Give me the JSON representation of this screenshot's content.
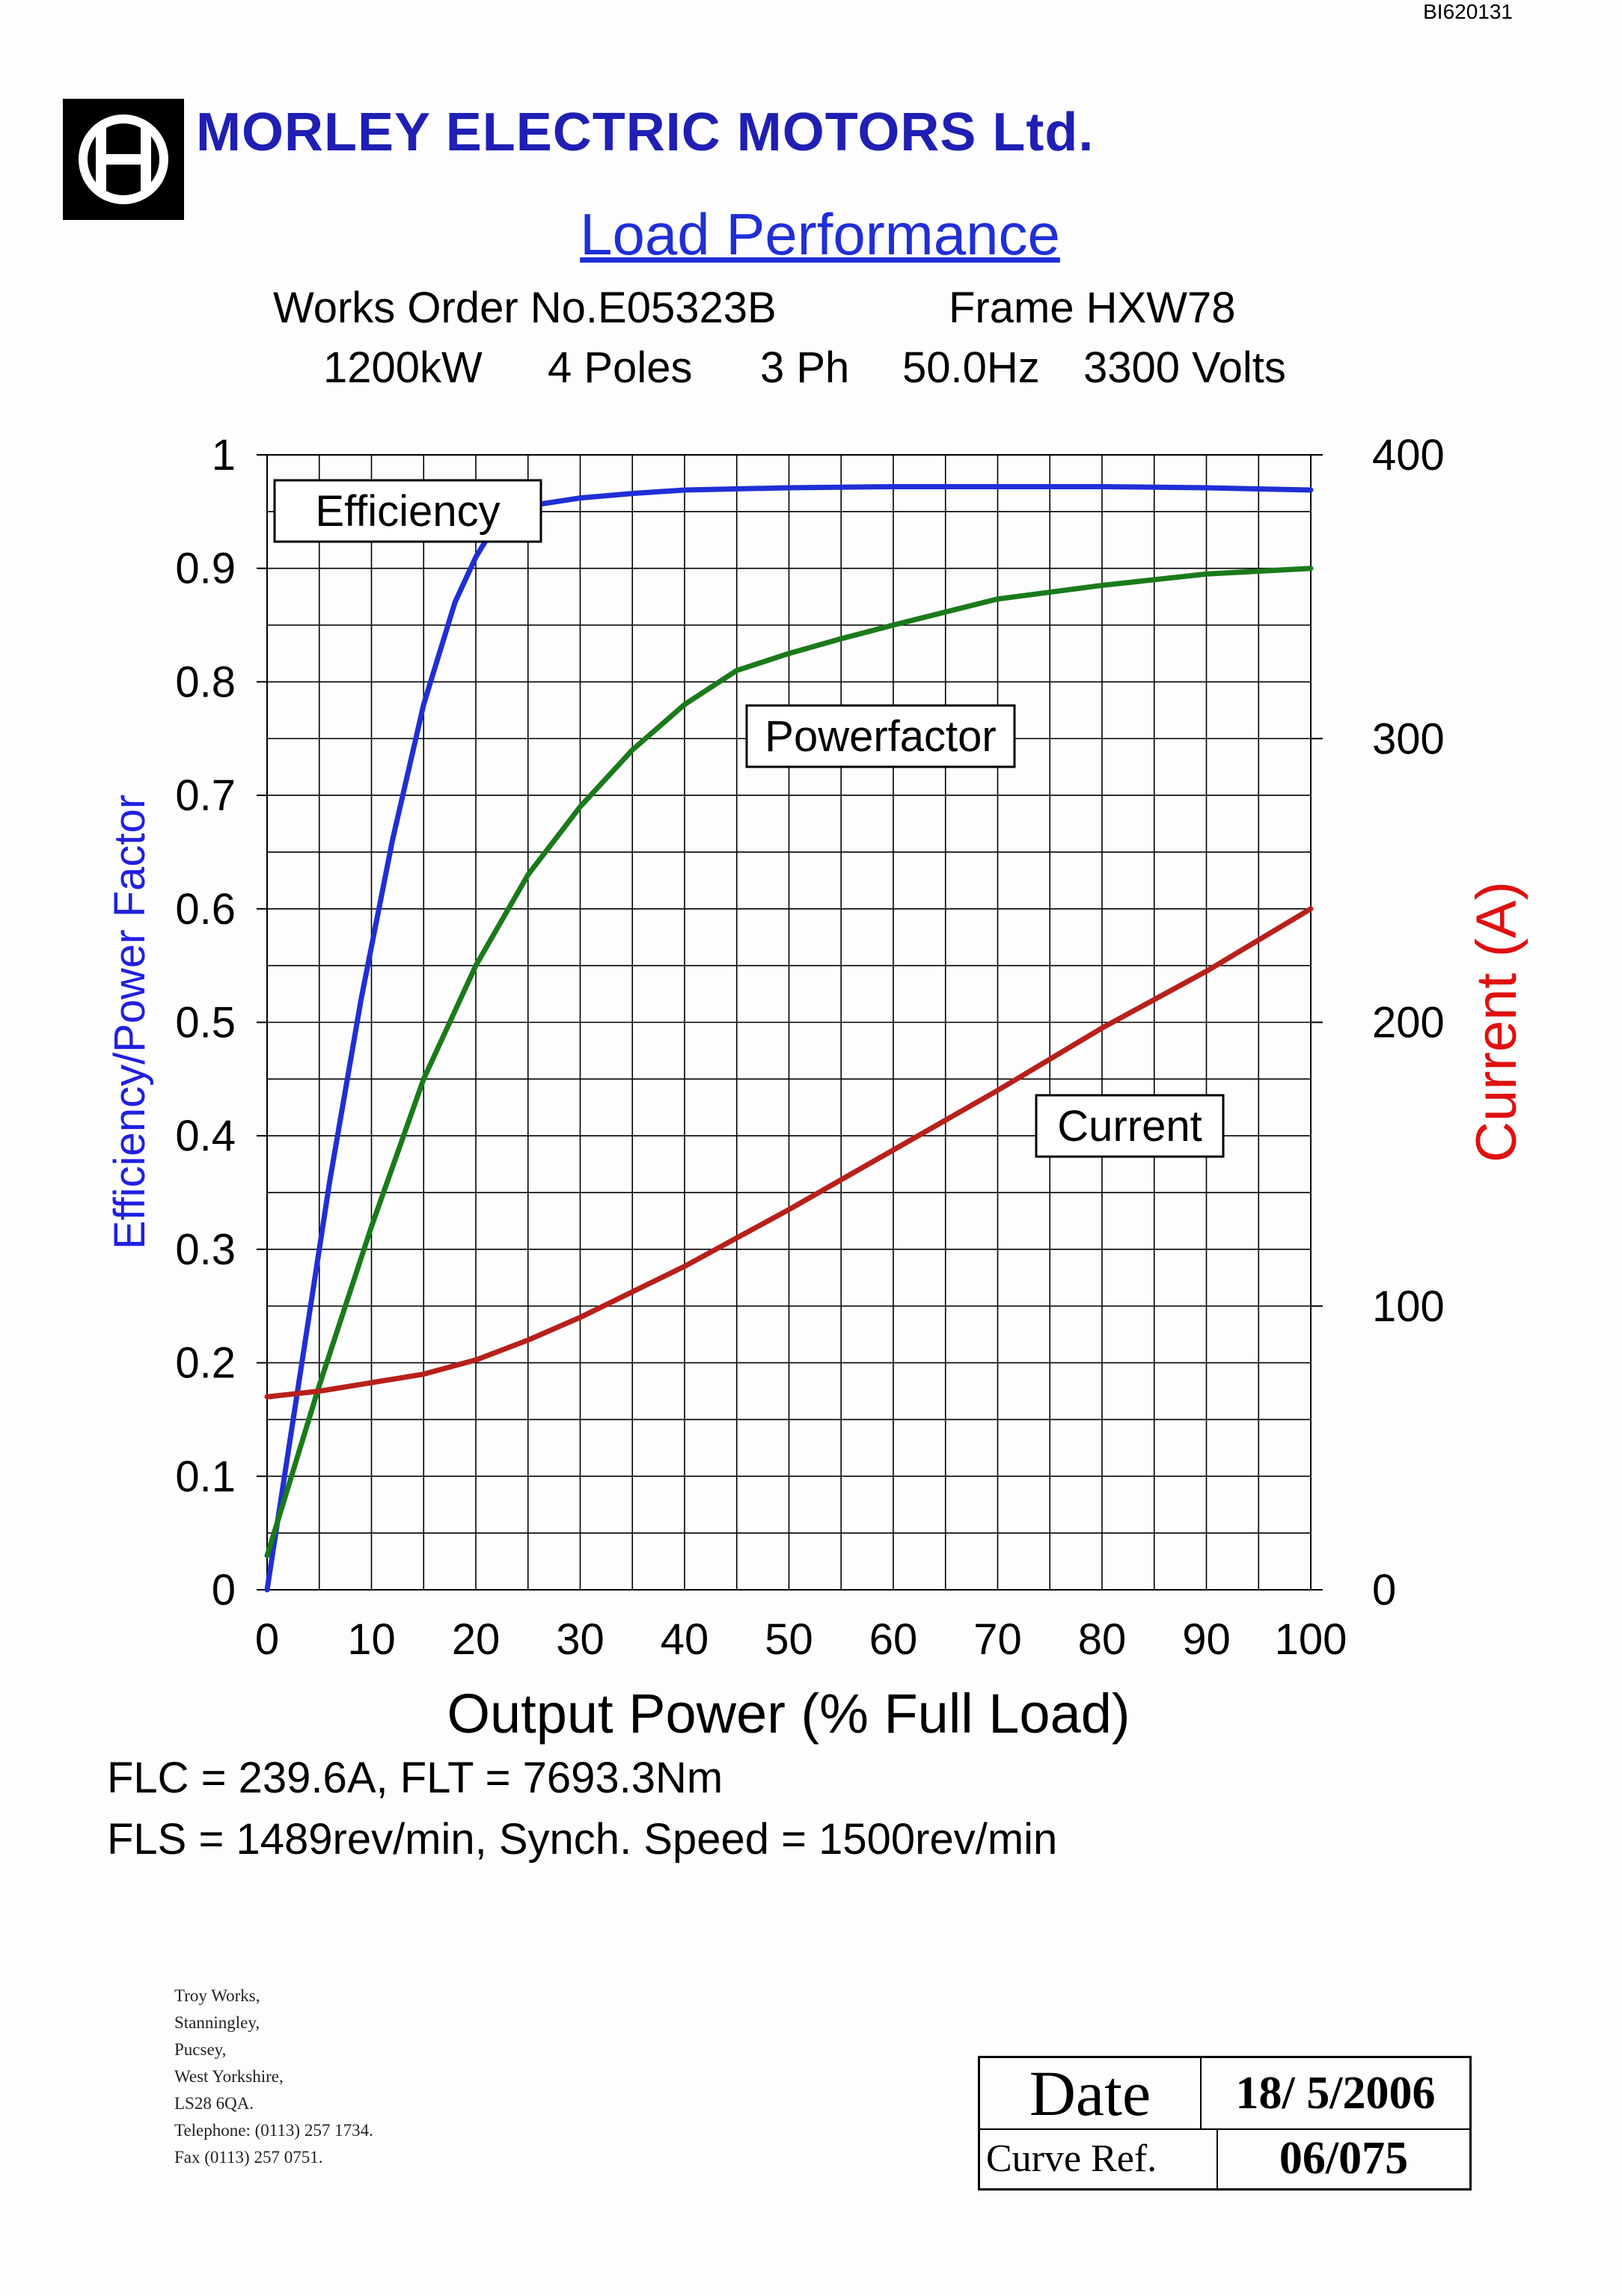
{
  "doc_ref": "BI620131",
  "header": {
    "company": "MORLEY ELECTRIC MOTORS Ltd.",
    "title": "Load Performance",
    "works_order": "Works Order No.E05323B",
    "frame": "Frame HXW78",
    "rating": {
      "power": "1200kW",
      "poles": "4 Poles",
      "phase": "3 Ph",
      "freq": "50.0Hz",
      "voltage": "3300 Volts"
    }
  },
  "colors": {
    "efficiency": "#1f2fd6",
    "powerfactor": "#1a7a1a",
    "current": "#b8201a",
    "left_axis_label": "#2020e0",
    "right_axis_label": "#e01010"
  },
  "chart_data": {
    "type": "line",
    "xlabel": "Output Power (% Full Load)",
    "ylabel_left": "Efficiency/Power Factor",
    "ylabel_right": "Current (A)",
    "xlim": [
      0,
      100
    ],
    "ylim_left": [
      0,
      1
    ],
    "ylim_right": [
      0,
      400
    ],
    "x_ticks": [
      0,
      10,
      20,
      30,
      40,
      50,
      60,
      70,
      80,
      90,
      100
    ],
    "y_left_ticks": [
      0,
      0.1,
      0.2,
      0.3,
      0.4,
      0.5,
      0.6,
      0.7,
      0.8,
      0.9,
      1
    ],
    "y_right_ticks": [
      0,
      100,
      200,
      300,
      400
    ],
    "grid": true,
    "series": [
      {
        "name": "Efficiency",
        "axis": "left",
        "x": [
          0,
          3,
          6,
          9,
          12,
          15,
          18,
          20,
          22,
          25,
          30,
          35,
          40,
          50,
          60,
          70,
          80,
          90,
          100
        ],
        "y": [
          0,
          0.18,
          0.36,
          0.52,
          0.66,
          0.78,
          0.87,
          0.91,
          0.94,
          0.955,
          0.962,
          0.966,
          0.969,
          0.971,
          0.972,
          0.972,
          0.972,
          0.971,
          0.969
        ]
      },
      {
        "name": "Powerfactor",
        "axis": "left",
        "x": [
          0,
          5,
          10,
          15,
          20,
          25,
          30,
          35,
          40,
          45,
          50,
          55,
          60,
          70,
          80,
          90,
          100
        ],
        "y": [
          0.03,
          0.18,
          0.32,
          0.45,
          0.55,
          0.63,
          0.69,
          0.74,
          0.78,
          0.81,
          0.825,
          0.838,
          0.85,
          0.873,
          0.885,
          0.895,
          0.9
        ]
      },
      {
        "name": "Current",
        "axis": "right",
        "x": [
          0,
          5,
          10,
          15,
          20,
          25,
          30,
          35,
          40,
          45,
          50,
          60,
          70,
          80,
          90,
          100
        ],
        "y": [
          68,
          70,
          73,
          76,
          81,
          88,
          96,
          105,
          114,
          124,
          134,
          155,
          176,
          198,
          218,
          240
        ]
      }
    ],
    "annotations": [
      {
        "text": "Efficiency",
        "series": "Efficiency"
      },
      {
        "text": "Powerfactor",
        "series": "Powerfactor"
      },
      {
        "text": "Current",
        "series": "Current"
      }
    ]
  },
  "notes": {
    "line1": "FLC =  239.6A, FLT =    7693.3Nm",
    "line2": "FLS = 1489rev/min, Synch. Speed = 1500rev/min"
  },
  "address": [
    "Troy Works,",
    "Stanningley,",
    "Pucsey,",
    "West Yorkshire,",
    "LS28 6QA.",
    "Telephone: (0113) 257 1734.",
    "Fax (0113) 257 0751."
  ],
  "stamp": {
    "date_label": "Date",
    "date_value": "18/ 5/2006",
    "ref_label": "Curve Ref.",
    "ref_value": "06/075"
  }
}
